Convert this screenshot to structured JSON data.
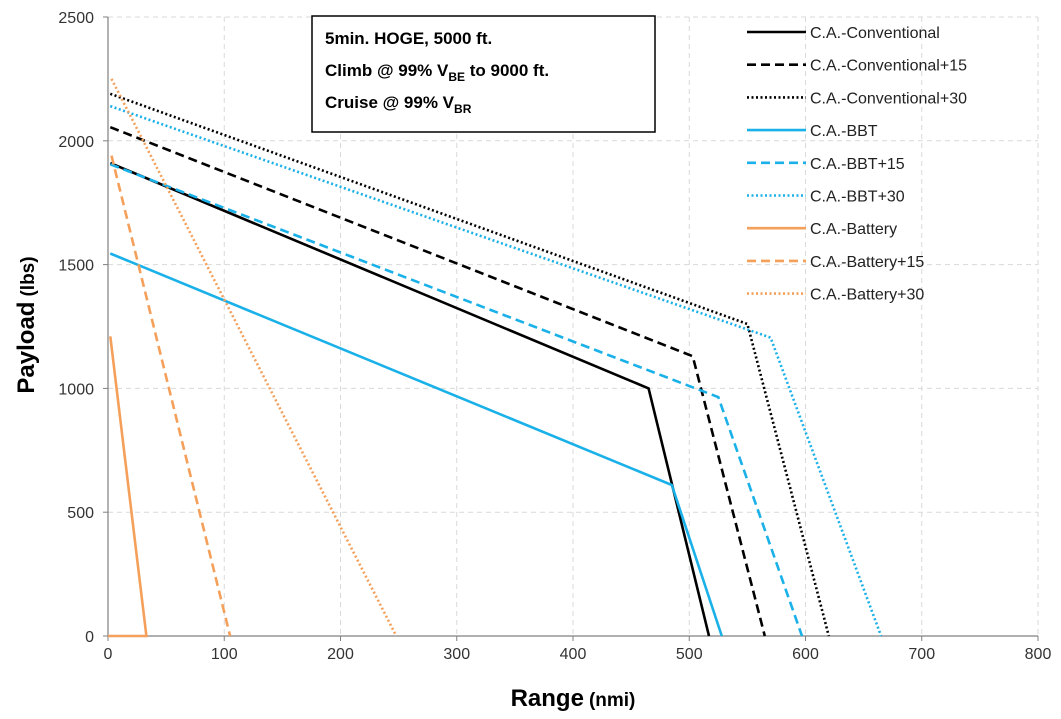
{
  "chart_data": {
    "type": "line",
    "xlabel": "Range",
    "xlabel_unit": "(nmi)",
    "ylabel": "Payload",
    "ylabel_unit": "(lbs)",
    "xlim": [
      0,
      800
    ],
    "ylim": [
      0,
      2500
    ],
    "x_ticks": [
      "0",
      "100",
      "200",
      "300",
      "400",
      "500",
      "600",
      "700",
      "800"
    ],
    "y_ticks": [
      "0",
      "500",
      "1000",
      "1500",
      "2000",
      "2500"
    ],
    "grid": true,
    "legend_position": "top-right",
    "annotation": {
      "line1": "5min. HOGE, 5000 ft.",
      "line2_prefix": "Climb @ 99% V",
      "line2_sub": "BE",
      "line2_suffix": " to 9000 ft.",
      "line3_prefix": "Cruise @ 99% V",
      "line3_sub": "BR"
    },
    "colors": {
      "conventional": "#000000",
      "bbt": "#1ab0e8",
      "battery": "#f4a05a"
    },
    "series": [
      {
        "name": "C.A.-Conventional",
        "color": "#000000",
        "dash": "solid",
        "points": [
          [
            2,
            1910
          ],
          [
            465,
            1000
          ],
          [
            517,
            0
          ]
        ]
      },
      {
        "name": "C.A.-Conventional+15",
        "color": "#000000",
        "dash": "dashed",
        "points": [
          [
            2,
            2055
          ],
          [
            503,
            1130
          ],
          [
            565,
            0
          ]
        ]
      },
      {
        "name": "C.A.-Conventional+30",
        "color": "#000000",
        "dash": "dotted",
        "points": [
          [
            2,
            2190
          ],
          [
            550,
            1260
          ],
          [
            620,
            0
          ]
        ]
      },
      {
        "name": "C.A.-BBT",
        "color": "#1ab0e8",
        "dash": "solid",
        "points": [
          [
            2,
            1545
          ],
          [
            485,
            610
          ],
          [
            528,
            0
          ]
        ]
      },
      {
        "name": "C.A.-BBT+15",
        "color": "#1ab0e8",
        "dash": "dashed",
        "points": [
          [
            2,
            1905
          ],
          [
            525,
            965
          ],
          [
            597,
            0
          ]
        ]
      },
      {
        "name": "C.A.-BBT+30",
        "color": "#1ab0e8",
        "dash": "dotted",
        "points": [
          [
            2,
            2140
          ],
          [
            570,
            1205
          ],
          [
            665,
            0
          ]
        ]
      },
      {
        "name": "C.A.-Battery",
        "color": "#f4a05a",
        "dash": "solid",
        "points": [
          [
            2,
            1210
          ],
          [
            33,
            0
          ],
          [
            0,
            0
          ]
        ]
      },
      {
        "name": "C.A.-Battery+15",
        "color": "#f4a05a",
        "dash": "dashed",
        "points": [
          [
            3,
            1940
          ],
          [
            105,
            0
          ]
        ]
      },
      {
        "name": "C.A.-Battery+30",
        "color": "#f4a05a",
        "dash": "dotted",
        "points": [
          [
            3,
            2250
          ],
          [
            248,
            0
          ]
        ]
      }
    ]
  }
}
